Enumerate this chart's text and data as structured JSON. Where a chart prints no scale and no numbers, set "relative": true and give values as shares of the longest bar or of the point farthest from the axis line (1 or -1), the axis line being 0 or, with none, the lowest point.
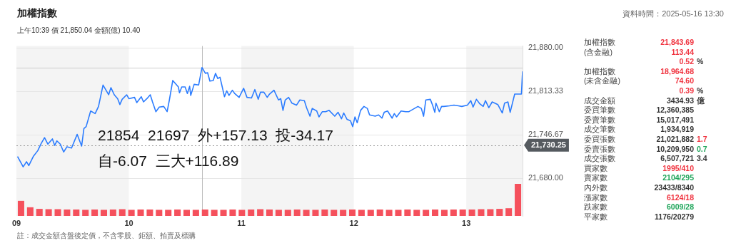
{
  "chart_data": [
    {
      "type": "line",
      "title": "加權指數",
      "subtitle": "上午10:39  價 21,850.04  金額(億) 10.40",
      "x": [
        9.01,
        9.06,
        9.09,
        9.11,
        9.15,
        9.19,
        9.22,
        9.25,
        9.28,
        9.32,
        9.34,
        9.36,
        9.39,
        9.42,
        9.45,
        9.49,
        9.54,
        9.58,
        9.6,
        9.62,
        9.66,
        9.7,
        9.73,
        9.77,
        9.82,
        9.84,
        9.87,
        9.9,
        9.92,
        9.94,
        9.98,
        10.0,
        10.05,
        10.07,
        10.11,
        10.13,
        10.16,
        10.19,
        10.21,
        10.24,
        10.27,
        10.31,
        10.34,
        10.36,
        10.39,
        10.44,
        10.45,
        10.47,
        10.5,
        10.52,
        10.54,
        10.55,
        10.58,
        10.62,
        10.65,
        10.68,
        10.7,
        10.72,
        10.75,
        10.77,
        10.79,
        10.81,
        10.85,
        10.87,
        10.89,
        10.92,
        10.94,
        10.98,
        11.02,
        11.05,
        11.09,
        11.12,
        11.15,
        11.17,
        11.2,
        11.23,
        11.25,
        11.29,
        11.33,
        11.35,
        11.37,
        11.39,
        11.42,
        11.45,
        11.49,
        11.52,
        11.56,
        11.58,
        11.61,
        11.63,
        11.67,
        11.69,
        11.72,
        11.75,
        11.78,
        11.83,
        11.86,
        11.89,
        11.91,
        11.94,
        11.97,
        11.99,
        12.01,
        12.03,
        12.06,
        12.09,
        12.12,
        12.14,
        12.19,
        12.22,
        12.25,
        12.27,
        12.3,
        12.34,
        12.36,
        12.38,
        12.42,
        12.46,
        12.49,
        12.57,
        12.6,
        12.62,
        12.64,
        12.68,
        12.7,
        12.72,
        12.73,
        12.76,
        12.78,
        12.8,
        12.85,
        12.89,
        12.93,
        12.96,
        13.01,
        13.04,
        13.06,
        13.09,
        13.12,
        13.15,
        13.17,
        13.2,
        13.23,
        13.28,
        13.32,
        13.34,
        13.37,
        13.39,
        13.43,
        13.49,
        13.5
      ],
      "series": [
        {
          "color": "#2b7cff",
          "values": [
            21713,
            21697,
            21705,
            21699,
            21713,
            21722,
            21733,
            21742,
            21732,
            21740,
            21730,
            21737,
            21732,
            21720,
            21728,
            21726,
            21747,
            21729,
            21756,
            21759,
            21783,
            21779,
            21790,
            21823,
            21808,
            21819,
            21808,
            21802,
            21793,
            21801,
            21808,
            21802,
            21804,
            21796,
            21805,
            21797,
            21802,
            21808,
            21797,
            21782,
            21789,
            21790,
            21782,
            21800,
            21830,
            21820,
            21811,
            21820,
            21820,
            21810,
            21821,
            21807,
            21824,
            21823,
            21850,
            21841,
            21842,
            21829,
            21830,
            21841,
            21833,
            21835,
            21805,
            21814,
            21807,
            21815,
            21810,
            21804,
            21818,
            21804,
            21803,
            21816,
            21801,
            21812,
            21812,
            21804,
            21809,
            21815,
            21800,
            21802,
            21784,
            21800,
            21804,
            21795,
            21792,
            21800,
            21799,
            21788,
            21775,
            21787,
            21783,
            21774,
            21782,
            21782,
            21784,
            21775,
            21781,
            21771,
            21780,
            21770,
            21768,
            21759,
            21774,
            21765,
            21784,
            21790,
            21787,
            21777,
            21775,
            21777,
            21772,
            21781,
            21783,
            21772,
            21779,
            21774,
            21783,
            21782,
            21782,
            21790,
            21787,
            21775,
            21800,
            21801,
            21792,
            21781,
            21795,
            21782,
            21790,
            21790,
            21791,
            21792,
            21791,
            21790,
            21792,
            21799,
            21789,
            21801,
            21794,
            21790,
            21799,
            21788,
            21797,
            21793,
            21780,
            21795,
            21797,
            21781,
            21809,
            21809,
            21844
          ]
        }
      ],
      "xlim": [
        9,
        13.5
      ],
      "xticks": [
        {
          "value": 9,
          "label": "09"
        },
        {
          "value": 10,
          "label": "10"
        },
        {
          "value": 11,
          "label": "11"
        },
        {
          "value": 12,
          "label": "12"
        },
        {
          "value": 13,
          "label": "13"
        }
      ],
      "ylim": [
        21621.5,
        21883
      ],
      "yticks": [
        {
          "value": 21680,
          "label": "21,680.00"
        },
        {
          "value": 21746.67,
          "label": "21,746.67"
        },
        {
          "value": 21813.33,
          "label": "21,813.33"
        },
        {
          "value": 21880,
          "label": "21,880.00"
        }
      ],
      "grid": "y",
      "marker": "none",
      "bands": [
        {
          "axis": "x",
          "from": 9,
          "to": 10,
          "color": "#f4f4f4"
        },
        {
          "axis": "x",
          "from": 11,
          "to": 12,
          "color": "#f4f4f4"
        },
        {
          "axis": "x",
          "from": 13,
          "to": 13.5,
          "color": "#f4f4f4"
        }
      ],
      "ref_lines": [
        {
          "axis": "y",
          "value": 21730.25,
          "label": "21,730.25",
          "color": "#999999",
          "line_style": "dotted"
        },
        {
          "axis": "x",
          "value": 10.65,
          "color": "#bbbbbb",
          "line_style": "solid"
        },
        {
          "axis": "y",
          "value": 21850,
          "color": "#cccccc",
          "line_style": "solid"
        }
      ],
      "annotations": [
        "資料時間：2025-05-16 13:30",
        "21854  21697  外+157.13  投-34.17",
        "自-6.07  三大+116.89",
        "註：成交金額含盤後定價，不含零股、鉅額、拍賣及標購"
      ]
    },
    {
      "type": "bar",
      "relative": true,
      "color": "#f5505c",
      "categories": [
        null,
        null,
        null,
        null,
        null,
        null,
        null,
        null,
        null,
        null,
        null,
        null,
        null,
        null,
        null,
        null,
        null,
        null,
        null,
        null,
        null,
        null,
        null,
        null,
        null,
        null,
        null,
        null,
        null,
        null,
        null,
        null,
        null,
        null,
        null,
        null,
        null,
        null,
        null,
        null,
        null,
        null,
        null,
        null,
        null,
        null,
        null,
        null,
        null,
        null,
        null,
        null,
        null,
        null,
        null
      ],
      "values": [
        0.47,
        0.27,
        0.22,
        0.21,
        0.21,
        0.2,
        0.2,
        0.19,
        0.2,
        0.19,
        0.2,
        0.21,
        0.19,
        0.2,
        0.2,
        0.19,
        0.19,
        0.2,
        0.19,
        0.19,
        0.2,
        0.19,
        0.19,
        0.2,
        0.19,
        0.2,
        0.21,
        0.2,
        0.19,
        0.19,
        0.2,
        0.19,
        0.19,
        0.2,
        0.19,
        0.19,
        0.2,
        0.19,
        0.19,
        0.2,
        0.19,
        0.19,
        0.2,
        0.19,
        0.19,
        0.2,
        0.19,
        0.2,
        0.2,
        0.2,
        0.21,
        0.21,
        0.22,
        0.24,
        1
      ]
    },
    {
      "type": "other",
      "cell_labels": [
        [
          "加權指數",
          "21,843.69",
          null
        ],
        [
          "(含金融)",
          "113.44",
          null
        ],
        [
          null,
          "0.52",
          "%"
        ],
        [
          "加權指數",
          "18,964.68",
          null
        ],
        [
          "(未含金融)",
          "74.60",
          null
        ],
        [
          null,
          "0.39",
          "%"
        ],
        [
          "成交金額",
          "3434.93",
          "億"
        ],
        [
          "委買筆數",
          "12,360,385",
          null
        ],
        [
          "委賣筆數",
          "15,017,491",
          null
        ],
        [
          "成交筆數",
          "1,934,919",
          null
        ],
        [
          "委買張數",
          "21,021,882",
          "1.7"
        ],
        [
          "委賣張數",
          "10,209,950",
          "0.7"
        ],
        [
          "成交張數",
          "6,507,721",
          "3.4"
        ],
        [
          "買家數",
          "1995/410",
          null
        ],
        [
          "賣家數",
          "2104/295",
          null
        ],
        [
          "內外數",
          "23433/8340",
          null
        ],
        [
          "漲家數",
          "6124/18",
          null
        ],
        [
          "跌家數",
          "6009/28",
          null
        ],
        [
          "平家數",
          "1176/20279",
          null
        ]
      ],
      "colors": [
        [
          "#f0333f",
          null
        ],
        [
          "#f0333f",
          null
        ],
        [
          "#f0333f",
          "#333333"
        ],
        [
          "#f0333f",
          null
        ],
        [
          "#f0333f",
          null
        ],
        [
          "#f0333f",
          "#333333"
        ],
        [
          "#333333",
          "#333333"
        ],
        [
          "#333333",
          null
        ],
        [
          "#333333",
          null
        ],
        [
          "#333333",
          null
        ],
        [
          "#333333",
          "#f0333f"
        ],
        [
          "#333333",
          "#1fa55a"
        ],
        [
          "#333333",
          "#333333"
        ],
        [
          "#f0333f",
          null
        ],
        [
          "#1fa55a",
          null
        ],
        [
          "#333333",
          null
        ],
        [
          "#f0333f",
          null
        ],
        [
          "#1fa55a",
          null
        ],
        [
          "#333333",
          null
        ]
      ]
    }
  ]
}
